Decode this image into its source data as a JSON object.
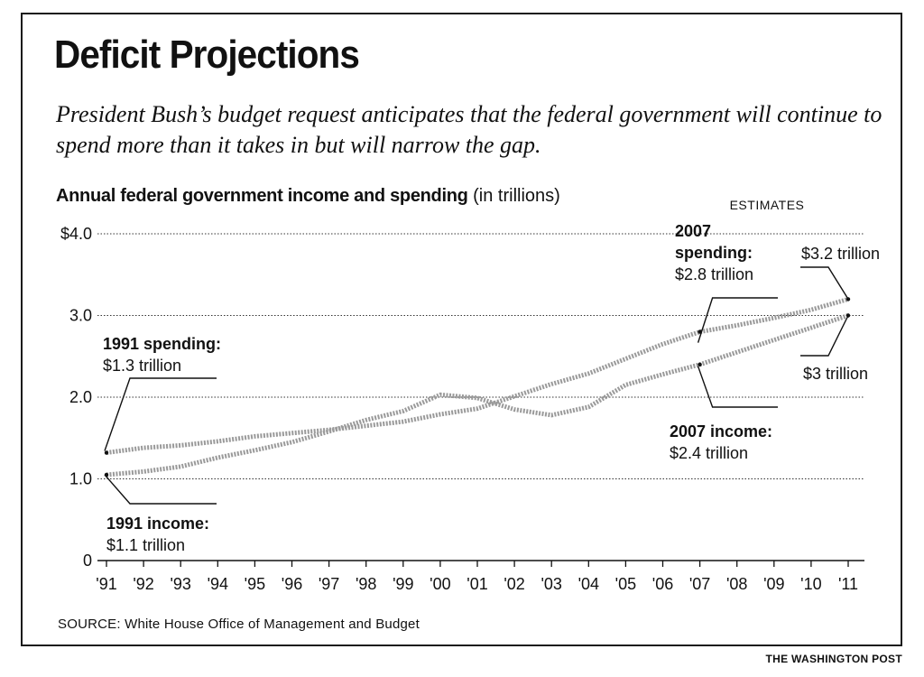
{
  "title": "Deficit Projections",
  "subtitle": "President Bush’s budget request anticipates that the federal government will continue to spend more than it takes in but will narrow the gap.",
  "chart_heading": {
    "bold": "Annual federal government income and spending",
    "light": "(in trillions)"
  },
  "estimates_label": "ESTIMATES",
  "source": "SOURCE: White House Office of Management and Budget",
  "credit": "THE WASHINGTON POST",
  "colors": {
    "ink": "#111111",
    "series": "#9a9a9a",
    "grid": "#333333"
  },
  "chart_data": {
    "type": "line",
    "x": [
      "'91",
      "'92",
      "'93",
      "'94",
      "'95",
      "'96",
      "'97",
      "'98",
      "'99",
      "'00",
      "'01",
      "'02",
      "'03",
      "'04",
      "'05",
      "'06",
      "'07",
      "'08",
      "'09",
      "'10",
      "'11"
    ],
    "series": [
      {
        "key": "spending",
        "values": [
          1.32,
          1.38,
          1.41,
          1.46,
          1.52,
          1.56,
          1.6,
          1.65,
          1.7,
          1.79,
          1.86,
          2.01,
          2.16,
          2.29,
          2.47,
          2.65,
          2.8,
          2.88,
          2.97,
          3.07,
          3.2
        ]
      },
      {
        "key": "income",
        "values": [
          1.05,
          1.09,
          1.15,
          1.26,
          1.35,
          1.45,
          1.58,
          1.72,
          1.83,
          2.03,
          1.99,
          1.85,
          1.78,
          1.88,
          2.15,
          2.28,
          2.4,
          2.55,
          2.7,
          2.85,
          3.0
        ]
      }
    ],
    "yticks": [
      {
        "value": 0,
        "label": "0"
      },
      {
        "value": 1,
        "label": "1.0"
      },
      {
        "value": 2,
        "label": "2.0"
      },
      {
        "value": 3,
        "label": "3.0"
      },
      {
        "value": 4,
        "label": "$4.0"
      }
    ],
    "ylim": [
      0,
      4
    ],
    "grid": true,
    "estimates_from": "'07",
    "annotations": [
      {
        "id": "ann-1991-spending",
        "lines": [
          "1991 spending:",
          "$1.3 trillion"
        ]
      },
      {
        "id": "ann-1991-income",
        "lines": [
          "1991 income:",
          "$1.1 trillion"
        ]
      },
      {
        "id": "ann-2007-spending",
        "lines": [
          "2007",
          "spending:",
          "$2.8 trillion"
        ]
      },
      {
        "id": "ann-2007-income",
        "lines": [
          "2007 income:",
          "$2.4 trillion"
        ]
      },
      {
        "id": "ann-2011-spending",
        "lines": [
          "$3.2 trillion"
        ]
      },
      {
        "id": "ann-2011-income",
        "lines": [
          "$3 trillion"
        ]
      }
    ]
  }
}
